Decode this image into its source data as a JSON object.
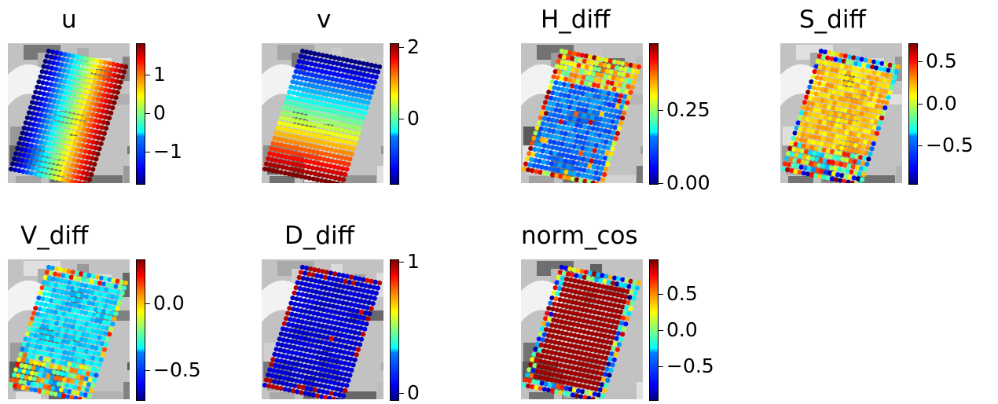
{
  "chart_data": [
    {
      "type": "scatter",
      "title": "u",
      "colormap": "jet",
      "vrange": [
        -1.8,
        1.8
      ],
      "ticks": [
        {
          "value": 1,
          "label": "1"
        },
        {
          "value": 0,
          "label": "0"
        },
        {
          "value": -1,
          "label": "−1"
        }
      ],
      "pattern": "horizontal"
    },
    {
      "type": "scatter",
      "title": "v",
      "colormap": "jet",
      "vrange": [
        -1.8,
        2.1
      ],
      "ticks": [
        {
          "value": 2,
          "label": "2"
        },
        {
          "value": 0,
          "label": "0"
        }
      ],
      "pattern": "vertical"
    },
    {
      "type": "scatter",
      "title": "H_diff",
      "colormap": "jet",
      "vrange": [
        0,
        0.48
      ],
      "ticks": [
        {
          "value": 0.25,
          "label": "0.25"
        },
        {
          "value": 0,
          "label": "0.00"
        }
      ],
      "pattern": "hdiff"
    },
    {
      "type": "scatter",
      "title": "S_diff",
      "colormap": "jet",
      "vrange": [
        -0.95,
        0.72
      ],
      "ticks": [
        {
          "value": 0.5,
          "label": "0.5"
        },
        {
          "value": 0,
          "label": "0.0"
        },
        {
          "value": -0.5,
          "label": "−0.5"
        }
      ],
      "pattern": "sdiff"
    },
    {
      "type": "scatter",
      "title": "V_diff",
      "colormap": "jet",
      "vrange": [
        -0.72,
        0.33
      ],
      "ticks": [
        {
          "value": 0,
          "label": "0.0"
        },
        {
          "value": -0.5,
          "label": "−0.5"
        }
      ],
      "pattern": "vdiff"
    },
    {
      "type": "scatter",
      "title": "D_diff",
      "colormap": "jet",
      "vrange": [
        -0.05,
        1.02
      ],
      "ticks": [
        {
          "value": 1,
          "label": "1"
        },
        {
          "value": 0,
          "label": "0"
        }
      ],
      "pattern": "ddiff"
    },
    {
      "type": "scatter",
      "title": "norm_cos",
      "colormap": "jet",
      "vrange": [
        -0.95,
        0.98
      ],
      "ticks": [
        {
          "value": 0.5,
          "label": "0.5"
        },
        {
          "value": 0,
          "label": "0.0"
        },
        {
          "value": -0.5,
          "label": "−0.5"
        }
      ],
      "pattern": "normcos"
    }
  ]
}
